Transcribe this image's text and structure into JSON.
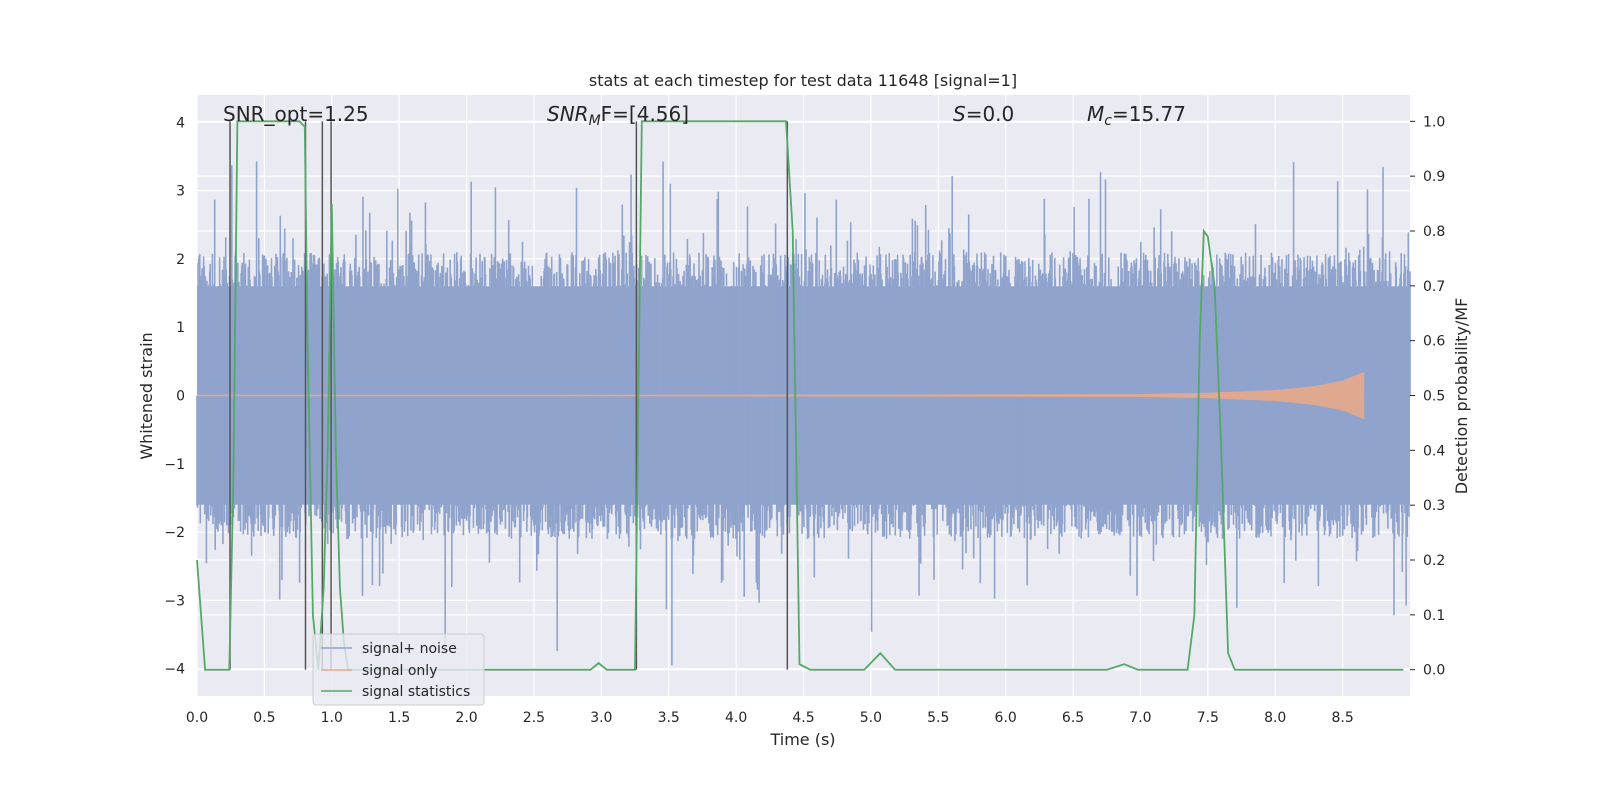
{
  "chart_data": {
    "type": "line",
    "title": "stats at each timestep for test data 11648 [signal=1]",
    "xlabel": "Time (s)",
    "ylabel": "Whitened strain",
    "y2label": "Detection probability/MF",
    "xlim": [
      0.0,
      9.0
    ],
    "ylim": [
      -4.4,
      4.4
    ],
    "y2lim": [
      -0.048,
      1.048
    ],
    "grid": true,
    "legend_position": "lower-left",
    "xticks": [
      "0.0",
      "0.5",
      "1.0",
      "1.5",
      "2.0",
      "2.5",
      "3.0",
      "3.5",
      "4.0",
      "4.5",
      "5.0",
      "5.5",
      "6.0",
      "6.5",
      "7.0",
      "7.5",
      "8.0",
      "8.5"
    ],
    "yticks": [
      "4",
      "3",
      "2",
      "1",
      "0",
      "−1",
      "−2",
      "−3",
      "−4"
    ],
    "y2ticks": [
      "1.0",
      "0.9",
      "0.8",
      "0.7",
      "0.6",
      "0.5",
      "0.4",
      "0.3",
      "0.2",
      "0.1",
      "0.0"
    ],
    "annotations": {
      "snr_opt": "SNR_opt=1.25",
      "snr_mf_main": "SNR",
      "snr_mf_sub": "M",
      "snr_mf_tail": "F=[4.56]",
      "s_main": "S",
      "s_tail": "=0.0",
      "mc_main": "M",
      "mc_sub": "c",
      "mc_tail": "=15.77"
    },
    "series": [
      {
        "name": "signal+ noise",
        "color": "#8fa3cc",
        "description_values": "dense whitened strain noise, band roughly -1.6 to 1.6 with spikes to about +/-4"
      },
      {
        "name": "signal only",
        "color": "#e8a88a",
        "envelope": [
          [
            0.0,
            0.0
          ],
          [
            7.0,
            0.02
          ],
          [
            7.5,
            0.04
          ],
          [
            8.0,
            0.08
          ],
          [
            8.3,
            0.14
          ],
          [
            8.5,
            0.22
          ],
          [
            8.6,
            0.3
          ],
          [
            8.66,
            0.35
          ]
        ]
      },
      {
        "name": "signal statistics",
        "color": "#55a868",
        "x": [
          0.0,
          0.06,
          0.12,
          0.18,
          0.24,
          0.27,
          0.3,
          0.76,
          0.8,
          0.82,
          0.86,
          0.9,
          0.94,
          0.97,
          1.0,
          1.03,
          1.06,
          1.09,
          1.12,
          1.3,
          2.8,
          2.92,
          2.98,
          3.04,
          3.25,
          3.3,
          4.37,
          4.42,
          4.47,
          4.55,
          4.95,
          5.07,
          5.18,
          5.4,
          6.75,
          6.88,
          6.98,
          7.35,
          7.4,
          7.44,
          7.47,
          7.5,
          7.55,
          7.6,
          7.65,
          7.7,
          7.75,
          8.95
        ],
        "y": [
          0.2,
          0.0,
          0.0,
          0.0,
          0.0,
          0.35,
          1.0,
          1.0,
          0.99,
          0.6,
          0.1,
          0.0,
          0.15,
          0.4,
          0.85,
          0.4,
          0.15,
          0.05,
          0.0,
          0.0,
          0.0,
          0.0,
          0.012,
          0.0,
          0.0,
          1.0,
          1.0,
          0.8,
          0.01,
          0.0,
          0.0,
          0.03,
          0.0,
          0.0,
          0.0,
          0.01,
          0.0,
          0.0,
          0.1,
          0.6,
          0.8,
          0.79,
          0.7,
          0.4,
          0.03,
          0.0,
          0.0,
          0.0
        ]
      }
    ],
    "vlines_x": [
      0.245,
      0.805,
      0.93,
      0.995,
      3.26,
      4.38
    ],
    "vline_color": "#555555"
  }
}
